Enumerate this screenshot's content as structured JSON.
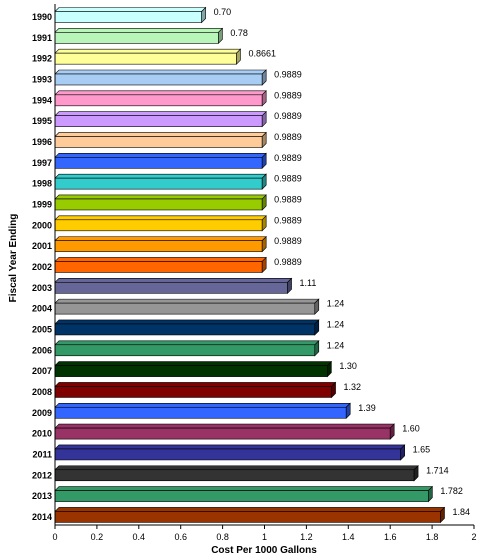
{
  "chart_data": {
    "type": "bar",
    "orientation": "horizontal",
    "title": "",
    "xlabel": "Cost Per 1000 Gallons",
    "ylabel": "Fiscal Year Ending",
    "xlim": [
      0,
      2
    ],
    "xticks": [
      "0",
      "0.2",
      "0.4",
      "0.6",
      "0.8",
      "1",
      "1.2",
      "1.4",
      "1.6",
      "1.8",
      "2"
    ],
    "grid": false,
    "legend": "none",
    "categories": [
      "1990",
      "1991",
      "1992",
      "1993",
      "1994",
      "1995",
      "1996",
      "1997",
      "1998",
      "1999",
      "2000",
      "2001",
      "2002",
      "2003",
      "2004",
      "2005",
      "2006",
      "2007",
      "2008",
      "2009",
      "2010",
      "2011",
      "2012",
      "2013",
      "2014"
    ],
    "values": [
      0.7,
      0.78,
      0.8661,
      0.9889,
      0.9889,
      0.9889,
      0.9889,
      0.9889,
      0.9889,
      0.9889,
      0.9889,
      0.9889,
      0.9889,
      1.11,
      1.24,
      1.24,
      1.24,
      1.3,
      1.32,
      1.39,
      1.6,
      1.65,
      1.714,
      1.782,
      1.84
    ],
    "value_labels": [
      "0.70",
      "0.78",
      "0.8661",
      "0.9889",
      "0.9889",
      "0.9889",
      "0.9889",
      "0.9889",
      "0.9889",
      "0.9889",
      "0.9889",
      "0.9889",
      "0.9889",
      "1.11",
      "1.24",
      "1.24",
      "1.24",
      "1.30",
      "1.32",
      "1.39",
      "1.60",
      "1.65",
      "1.714",
      "1.782",
      "1.84"
    ],
    "colors": [
      "#c8ffff",
      "#b8f5b8",
      "#ffff99",
      "#a8cdf5",
      "#ff99cc",
      "#cc99ff",
      "#ffcc99",
      "#3366ff",
      "#33cccc",
      "#99cc00",
      "#ffcc00",
      "#ff9900",
      "#ff6600",
      "#666699",
      "#969696",
      "#003366",
      "#339966",
      "#003300",
      "#800000",
      "#3366ff",
      "#993366",
      "#333399",
      "#333333",
      "#339966",
      "#993300"
    ]
  }
}
